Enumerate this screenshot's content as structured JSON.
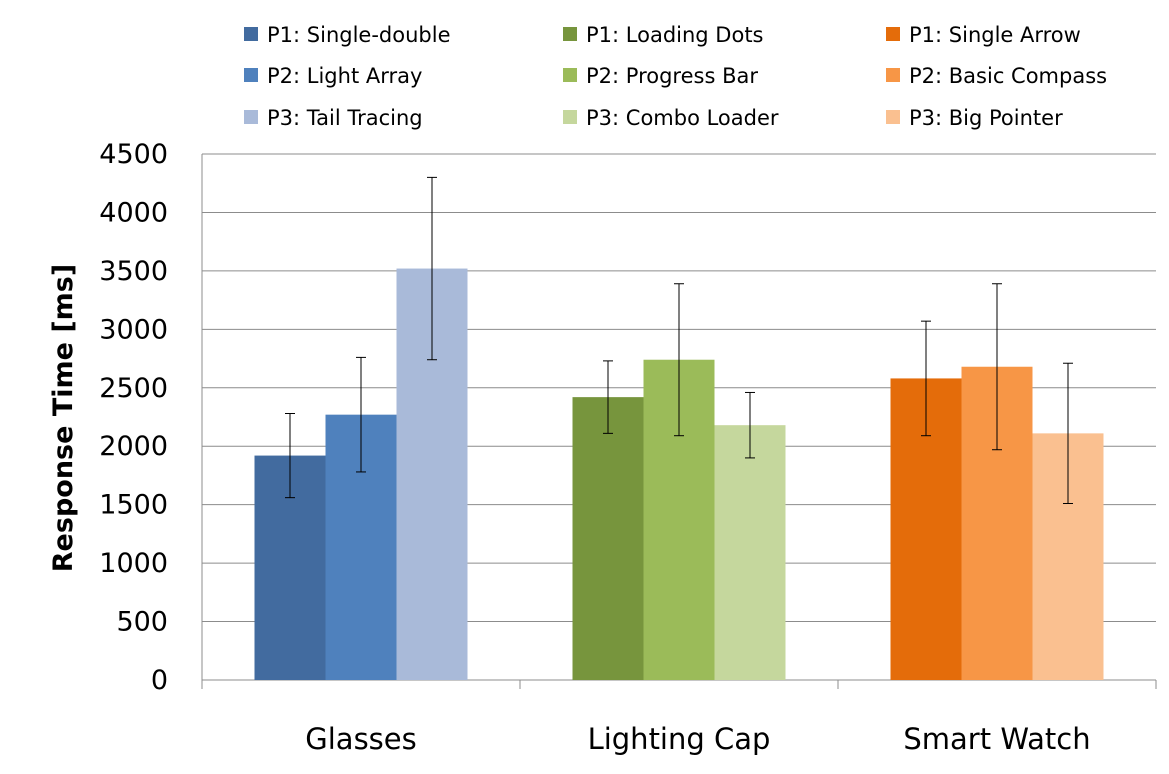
{
  "chart_data": {
    "type": "bar",
    "title": "",
    "xlabel": "",
    "ylabel": "Response Time [ms]",
    "ylim": [
      0,
      4500
    ],
    "yticks": [
      0,
      500,
      1000,
      1500,
      2000,
      2500,
      3000,
      3500,
      4000,
      4500
    ],
    "grid": true,
    "legend_position": "top",
    "categories": [
      "Glasses",
      "Lighting Cap",
      "Smart Watch"
    ],
    "groups": [
      {
        "category": "Glasses",
        "series": [
          {
            "name": "P1: Single-double",
            "value": 1920,
            "error": 360,
            "color": "#426b9f"
          },
          {
            "name": "P2: Light Array",
            "value": 2270,
            "error": 490,
            "color": "#4f81bd"
          },
          {
            "name": "P3: Tail Tracing",
            "value": 3520,
            "error": 780,
            "color": "#a9bad9"
          }
        ]
      },
      {
        "category": "Lighting Cap",
        "series": [
          {
            "name": "P1: Loading Dots",
            "value": 2420,
            "error": 310,
            "color": "#77953d"
          },
          {
            "name": "P2: Progress Bar",
            "value": 2740,
            "error": 650,
            "color": "#9bbb59"
          },
          {
            "name": "P3: Combo Loader",
            "value": 2180,
            "error": 280,
            "color": "#c5d79d"
          }
        ]
      },
      {
        "category": "Smart Watch",
        "series": [
          {
            "name": "P1: Single Arrow",
            "value": 2580,
            "error": 490,
            "color": "#e46c0a"
          },
          {
            "name": "P2: Basic Compass",
            "value": 2680,
            "error": 710,
            "color": "#f79646"
          },
          {
            "name": "P3: Big Pointer",
            "value": 2110,
            "error": 600,
            "color": "#fac090"
          }
        ]
      }
    ],
    "legend": [
      {
        "label": "P1: Single-double",
        "color": "#426b9f"
      },
      {
        "label": "P1: Loading Dots",
        "color": "#77953d"
      },
      {
        "label": "P1: Single Arrow",
        "color": "#e46c0a"
      },
      {
        "label": "P2: Light Array",
        "color": "#4f81bd"
      },
      {
        "label": "P2: Progress Bar",
        "color": "#9bbb59"
      },
      {
        "label": "P2: Basic Compass",
        "color": "#f79646"
      },
      {
        "label": "P3: Tail Tracing",
        "color": "#a9bad9"
      },
      {
        "label": "P3: Combo Loader",
        "color": "#c5d79d"
      },
      {
        "label": "P3: Big Pointer",
        "color": "#fac090"
      }
    ]
  }
}
